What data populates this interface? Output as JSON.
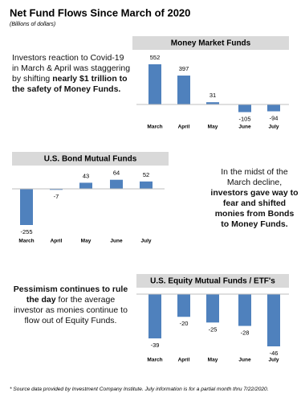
{
  "title": "Net Fund Flows Since March of 2020",
  "subtitle": "(Billions of dollars)",
  "chart_data": [
    {
      "type": "bar",
      "title": "Money Market Funds",
      "categories": [
        "March",
        "April",
        "May",
        "June",
        "July"
      ],
      "values": [
        552,
        397,
        31,
        -105,
        -94
      ],
      "color": "#4f81bd"
    },
    {
      "type": "bar",
      "title": "U.S. Bond Mutual Funds",
      "categories": [
        "March",
        "April",
        "May",
        "June",
        "July"
      ],
      "values": [
        -255,
        -7,
        43,
        64,
        52
      ],
      "color": "#4f81bd"
    },
    {
      "type": "bar",
      "title": "U.S. Equity Mutual Funds / ETF's",
      "categories": [
        "March",
        "April",
        "May",
        "June",
        "July"
      ],
      "values": [
        -39,
        -20,
        -25,
        -28,
        -46
      ],
      "color": "#4f81bd"
    }
  ],
  "notes": [
    [
      {
        "text": "Investors reaction to Covid-19 in March & April was staggering by shifting ",
        "bold": false
      },
      {
        "text": "nearly $1 trillion to the safety of Money Funds.",
        "bold": true
      }
    ],
    [
      {
        "text": "In the midst of the March decline, ",
        "bold": false
      },
      {
        "text": "investors gave way to fear and shifted monies from Bonds to Money Funds.",
        "bold": true
      }
    ],
    [
      {
        "text": "Pessimism continues to rule the day",
        "bold": true
      },
      {
        "text": " for the average investor as monies continue to flow out of Equity Funds.",
        "bold": false
      }
    ]
  ],
  "footnote": "* Source data provided by Investment Company Institute.  July information is for a partial month thru 7/22/2020."
}
